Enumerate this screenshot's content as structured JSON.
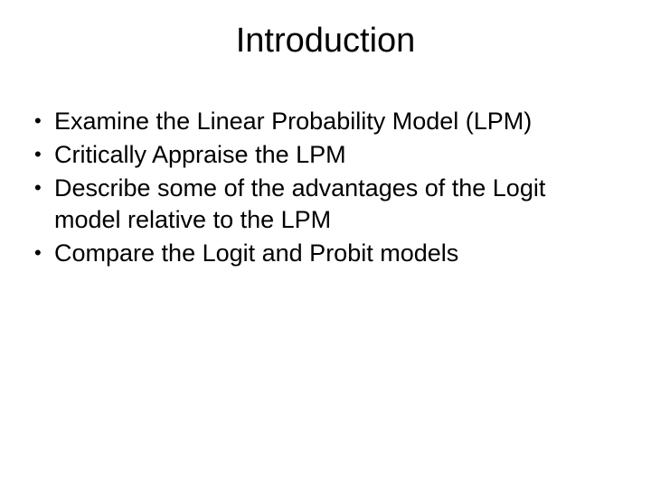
{
  "slide": {
    "title": "Introduction",
    "bullets": [
      "Examine the Linear Probability Model (LPM)",
      "Critically Appraise the LPM",
      "Describe some of the advantages of the Logit model relative to the LPM",
      "Compare the Logit and Probit models"
    ]
  },
  "styling": {
    "background_color": "#ffffff",
    "text_color": "#000000",
    "title_fontsize": 38,
    "body_fontsize": 27,
    "font_family": "Arial"
  }
}
